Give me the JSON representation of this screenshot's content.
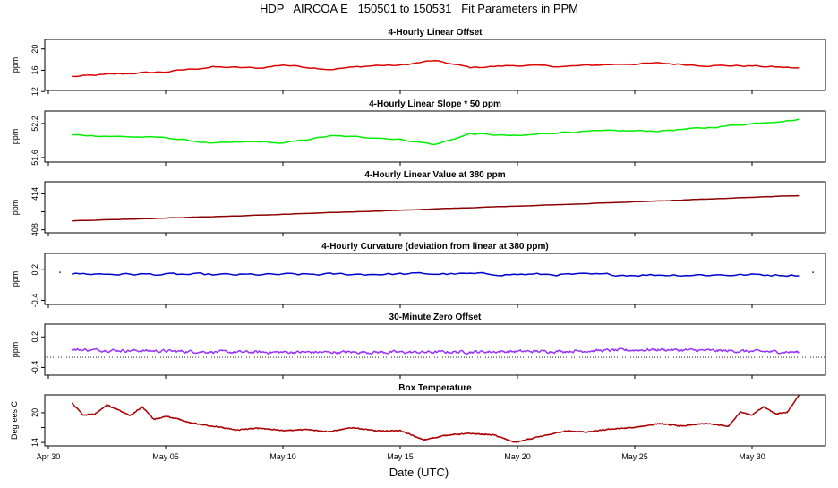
{
  "title": "HDP   AIRCOA E   150501 to 150531   Fit Parameters in PPM",
  "xlabel": "Date (UTC)",
  "x_ticks": [
    {
      "label": "Apr 30",
      "day": 0
    },
    {
      "label": "May 05",
      "day": 5
    },
    {
      "label": "May 10",
      "day": 10
    },
    {
      "label": "May 15",
      "day": 15
    },
    {
      "label": "May 20",
      "day": 20
    },
    {
      "label": "May 25",
      "day": 25
    },
    {
      "label": "May 30",
      "day": 30
    }
  ],
  "chart_data": [
    {
      "type": "line",
      "title": "4-Hourly Linear Offset",
      "ylabel": "ppm",
      "ylim": [
        12.2,
        21.8
      ],
      "yticks": [
        12,
        16,
        20
      ],
      "ytick_labels": [
        "12",
        "16",
        "20"
      ],
      "color": "#dd0000",
      "hlines": [],
      "x_range_days": [
        1.0,
        32.0
      ],
      "keypoints": [
        [
          1.0,
          14.8
        ],
        [
          3,
          15.3
        ],
        [
          5,
          15.7
        ],
        [
          7,
          16.6
        ],
        [
          9,
          16.4
        ],
        [
          10,
          17.0
        ],
        [
          12,
          16.2
        ],
        [
          14,
          16.9
        ],
        [
          15,
          16.9
        ],
        [
          16.4,
          17.8
        ],
        [
          18,
          16.5
        ],
        [
          20,
          16.9
        ],
        [
          22,
          16.7
        ],
        [
          24,
          17.1
        ],
        [
          26,
          17.3
        ],
        [
          28,
          16.9
        ],
        [
          30,
          16.8
        ],
        [
          32,
          16.4
        ]
      ],
      "noise": 0.28,
      "step_minutes": 240
    },
    {
      "type": "line",
      "title": "4-Hourly Linear Slope * 50 ppm",
      "ylabel": "ppm",
      "ylim": [
        51.52,
        52.42
      ],
      "yticks": [
        51.6,
        52.2
      ],
      "ytick_labels": [
        "51.6",
        "52.2"
      ],
      "color": "#00ee00",
      "hlines": [],
      "x_range_days": [
        1.0,
        32.0
      ],
      "keypoints": [
        [
          1.0,
          52.0
        ],
        [
          3,
          51.97
        ],
        [
          5,
          51.95
        ],
        [
          7,
          51.85
        ],
        [
          9,
          51.88
        ],
        [
          10,
          51.85
        ],
        [
          12,
          51.98
        ],
        [
          14,
          51.95
        ],
        [
          15,
          51.92
        ],
        [
          16.5,
          51.83
        ],
        [
          18,
          52.02
        ],
        [
          20,
          51.98
        ],
        [
          22,
          52.05
        ],
        [
          24,
          52.07
        ],
        [
          26,
          52.07
        ],
        [
          28,
          52.12
        ],
        [
          30,
          52.2
        ],
        [
          32,
          52.27
        ]
      ],
      "noise": 0.022,
      "step_minutes": 240
    },
    {
      "type": "line",
      "title": "4-Hourly Linear Value at 380 ppm",
      "ylabel": "ppm",
      "ylim": [
        407.5,
        416.0
      ],
      "yticks": [
        408,
        411,
        414
      ],
      "ytick_labels": [
        "408",
        "",
        "414"
      ],
      "color": "#8b0000",
      "hlines": [],
      "x_range_days": [
        1.0,
        32.0
      ],
      "keypoints": [
        [
          1.0,
          409.5
        ],
        [
          8,
          410.3
        ],
        [
          16,
          411.4
        ],
        [
          24,
          412.5
        ],
        [
          32,
          413.7
        ]
      ],
      "noise": 0.05,
      "step_minutes": 240
    },
    {
      "type": "line",
      "title": "4-Hourly Curvature (deviation from linear at 380 ppm)",
      "ylabel": "ppm",
      "ylim": [
        -0.48,
        0.52
      ],
      "yticks": [
        -0.4,
        0.2
      ],
      "ytick_labels": [
        "-0.4",
        "0.2"
      ],
      "color": "#0000cc",
      "hlines": [],
      "x_range_days": [
        1.0,
        32.0
      ],
      "keypoints": [
        [
          1.0,
          0.12
        ],
        [
          8,
          0.1
        ],
        [
          16,
          0.12
        ],
        [
          24,
          0.1
        ],
        [
          32,
          0.1
        ]
      ],
      "noise": 0.045,
      "step_minutes": 240
    },
    {
      "type": "line",
      "title": "30-Minute Zero Offset",
      "ylabel": "ppm",
      "ylim": [
        -0.55,
        0.45
      ],
      "yticks": [
        -0.4,
        0.2
      ],
      "ytick_labels": [
        "-0.4",
        "0.2"
      ],
      "color": "#9933ff",
      "hlines": [
        0.0,
        -0.2
      ],
      "x_range_days": [
        1.0,
        32.0
      ],
      "keypoints": [
        [
          1.0,
          -0.05
        ],
        [
          8,
          -0.1
        ],
        [
          16,
          -0.1
        ],
        [
          22,
          -0.08
        ],
        [
          26,
          -0.05
        ],
        [
          32,
          -0.1
        ]
      ],
      "noise": 0.05,
      "step_minutes": 60
    },
    {
      "type": "line",
      "title": "Box Temperature",
      "ylabel": "Degrees C",
      "ylim": [
        13.3,
        23.6
      ],
      "yticks": [
        14,
        17,
        20
      ],
      "ytick_labels": [
        "14",
        "",
        "20"
      ],
      "color": "#aa0000",
      "hlines": [],
      "x_range_days": [
        1.0,
        32.0
      ],
      "keypoints": [
        [
          1.0,
          22.0
        ],
        [
          1.5,
          19.5
        ],
        [
          2,
          19.8
        ],
        [
          2.5,
          21.6
        ],
        [
          3,
          20.5
        ],
        [
          3.5,
          19.4
        ],
        [
          4,
          21.2
        ],
        [
          4.5,
          18.7
        ],
        [
          5,
          19.2
        ],
        [
          5.5,
          18.8
        ],
        [
          6,
          18.0
        ],
        [
          7,
          17.3
        ],
        [
          8,
          16.5
        ],
        [
          9,
          16.9
        ],
        [
          10,
          16.4
        ],
        [
          11,
          16.6
        ],
        [
          12,
          16.2
        ],
        [
          13,
          17.0
        ],
        [
          14,
          16.3
        ],
        [
          15,
          16.4
        ],
        [
          16,
          14.5
        ],
        [
          17,
          15.5
        ],
        [
          18,
          15.8
        ],
        [
          19,
          15.5
        ],
        [
          19.9,
          14.0
        ],
        [
          21,
          15.2
        ],
        [
          22,
          16.3
        ],
        [
          23,
          16.1
        ],
        [
          24,
          16.7
        ],
        [
          25,
          17.0
        ],
        [
          26,
          17.8
        ],
        [
          27,
          17.3
        ],
        [
          28,
          17.8
        ],
        [
          29,
          17.3
        ],
        [
          29.5,
          20.2
        ],
        [
          30,
          19.5
        ],
        [
          30.5,
          21.2
        ],
        [
          31,
          19.8
        ],
        [
          31.5,
          20.1
        ],
        [
          32,
          23.5
        ]
      ],
      "noise": 0.18,
      "step_minutes": 30
    }
  ]
}
